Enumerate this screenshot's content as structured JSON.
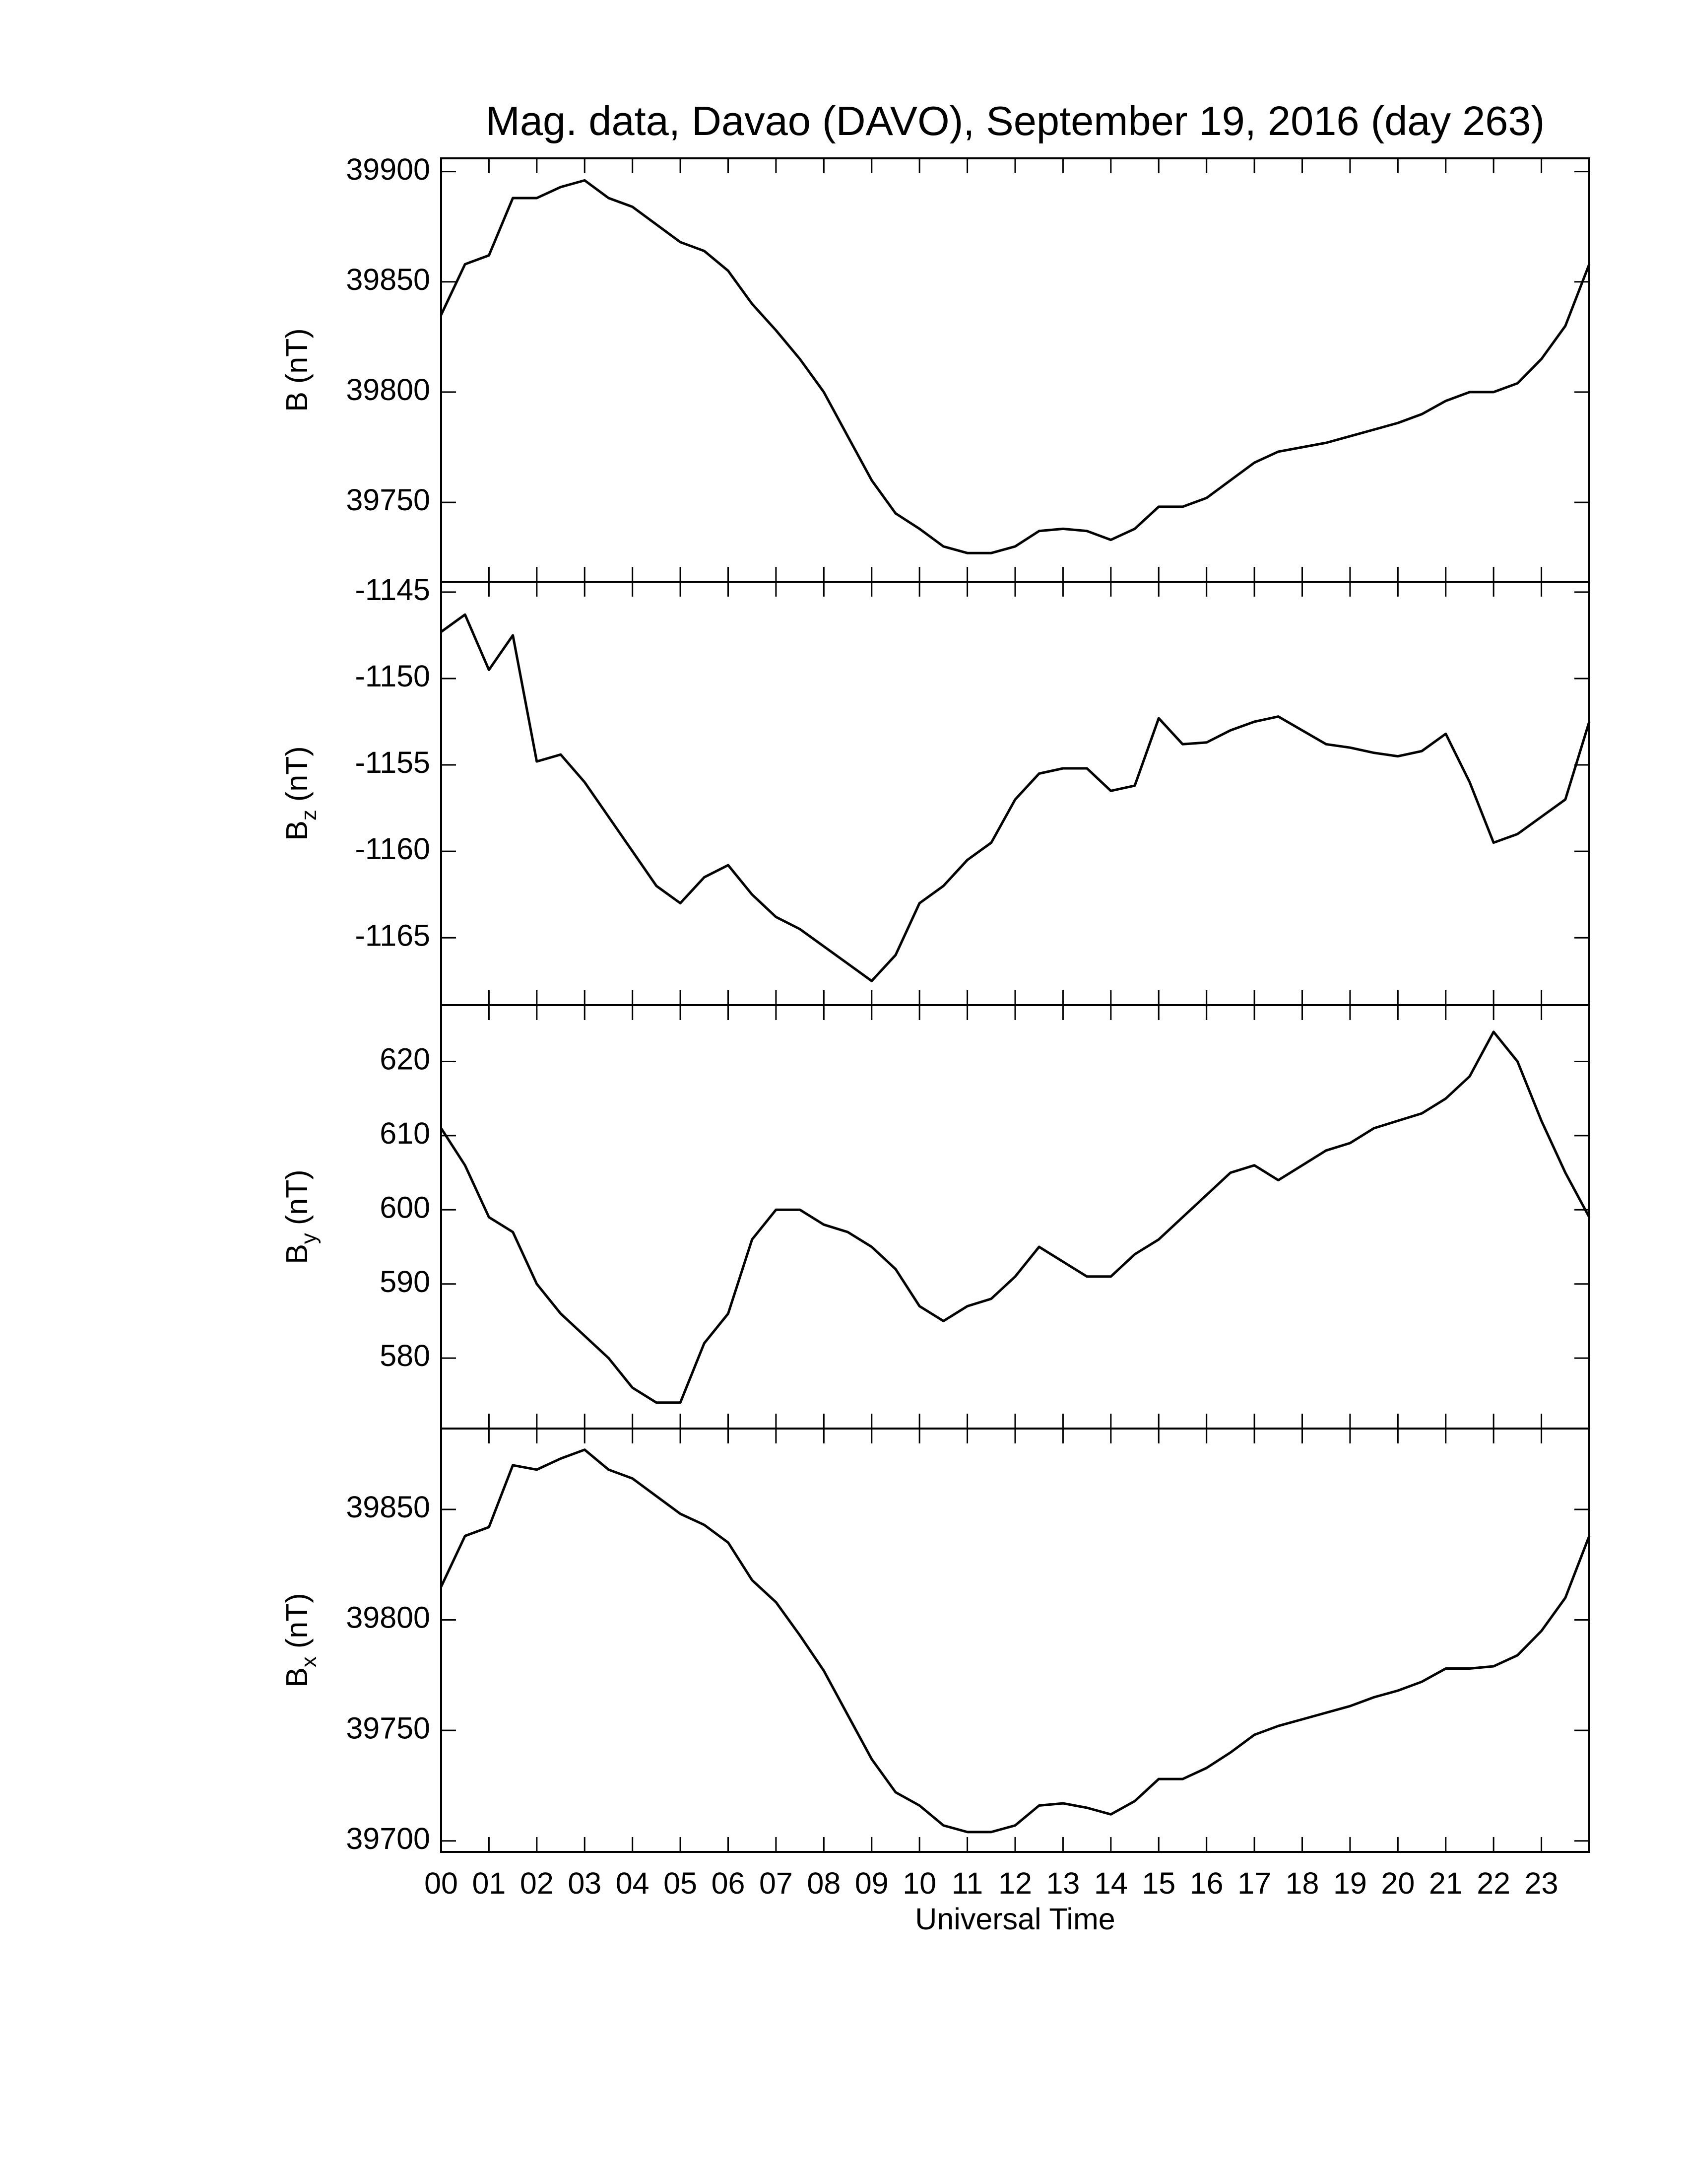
{
  "chart_data": [
    {
      "type": "line",
      "title": "Mag. data, Davao (DAVO), September 19, 2016 (day 263)",
      "ylabel": "B",
      "ylabel_unit": "(nT)",
      "color": "#000000",
      "x": [
        0,
        0.5,
        1,
        1.5,
        2,
        2.5,
        3,
        3.5,
        4,
        4.5,
        5,
        5.5,
        6,
        6.5,
        7,
        7.5,
        8,
        8.5,
        9,
        9.5,
        10,
        10.5,
        11,
        11.5,
        12,
        12.5,
        13,
        13.5,
        14,
        14.5,
        15,
        15.5,
        16,
        16.5,
        17,
        17.5,
        18,
        18.5,
        19,
        19.5,
        20,
        20.5,
        21,
        21.5,
        22,
        22.5,
        23,
        23.5,
        24
      ],
      "values": [
        39835,
        39858,
        39862,
        39888,
        39888,
        39893,
        39896,
        39888,
        39884,
        39876,
        39868,
        39864,
        39855,
        39840,
        39828,
        39815,
        39800,
        39780,
        39760,
        39745,
        39738,
        39730,
        39727,
        39727,
        39730,
        39737,
        39738,
        39737,
        39733,
        39738,
        39748,
        39748,
        39752,
        39760,
        39768,
        39773,
        39775,
        39777,
        39780,
        39783,
        39786,
        39790,
        39796,
        39800,
        39800,
        39804,
        39815,
        39830,
        39858
      ],
      "xlim": [
        0,
        24
      ],
      "xticks": [
        0,
        1,
        2,
        3,
        4,
        5,
        6,
        7,
        8,
        9,
        10,
        11,
        12,
        13,
        14,
        15,
        16,
        17,
        18,
        19,
        20,
        21,
        22,
        23,
        24
      ],
      "ylim": [
        39714,
        39906
      ],
      "yticks": [
        39750,
        39800,
        39850,
        39900
      ]
    },
    {
      "type": "line",
      "ylabel": "B",
      "ylabel_subscript": "z",
      "ylabel_unit": "(nT)",
      "color": "#000000",
      "x": [
        0,
        0.5,
        1,
        1.5,
        2,
        2.5,
        3,
        3.5,
        4,
        4.5,
        5,
        5.5,
        6,
        6.5,
        7,
        7.5,
        8,
        8.5,
        9,
        9.5,
        10,
        10.5,
        11,
        11.5,
        12,
        12.5,
        13,
        13.5,
        14,
        14.5,
        15,
        15.5,
        16,
        16.5,
        17,
        17.5,
        18,
        18.5,
        19,
        19.5,
        20,
        20.5,
        21,
        21.5,
        22,
        22.5,
        23,
        23.5,
        24
      ],
      "values": [
        -1147.3,
        -1146.3,
        -1149.5,
        -1147.5,
        -1154.8,
        -1154.4,
        -1156,
        -1158,
        -1160,
        -1162,
        -1163,
        -1161.5,
        -1160.8,
        -1162.5,
        -1163.8,
        -1164.5,
        -1165.5,
        -1166.5,
        -1167.5,
        -1166,
        -1163,
        -1162,
        -1160.5,
        -1159.5,
        -1157,
        -1155.5,
        -1155.2,
        -1155.2,
        -1156.5,
        -1156.2,
        -1152.3,
        -1153.8,
        -1153.7,
        -1153,
        -1152.5,
        -1152.2,
        -1153,
        -1153.8,
        -1154,
        -1154.3,
        -1154.5,
        -1154.2,
        -1153.2,
        -1156,
        -1159.5,
        -1159,
        -1158,
        -1157,
        -1152.5
      ],
      "xlim": [
        0,
        24
      ],
      "xticks": [
        0,
        1,
        2,
        3,
        4,
        5,
        6,
        7,
        8,
        9,
        10,
        11,
        12,
        13,
        14,
        15,
        16,
        17,
        18,
        19,
        20,
        21,
        22,
        23,
        24
      ],
      "ylim": [
        -1168.9,
        -1144.4
      ],
      "yticks": [
        -1165,
        -1160,
        -1155,
        -1150,
        -1145
      ]
    },
    {
      "type": "line",
      "ylabel": "B",
      "ylabel_subscript": "y",
      "ylabel_unit": "(nT)",
      "color": "#000000",
      "x": [
        0,
        0.5,
        1,
        1.5,
        2,
        2.5,
        3,
        3.5,
        4,
        4.5,
        5,
        5.5,
        6,
        6.5,
        7,
        7.5,
        8,
        8.5,
        9,
        9.5,
        10,
        10.5,
        11,
        11.5,
        12,
        12.5,
        13,
        13.5,
        14,
        14.5,
        15,
        15.5,
        16,
        16.5,
        17,
        17.5,
        18,
        18.5,
        19,
        19.5,
        20,
        20.5,
        21,
        21.5,
        22,
        22.5,
        23,
        23.5,
        24
      ],
      "values": [
        611,
        606,
        599,
        597,
        590,
        586,
        583,
        580,
        576,
        574,
        574,
        582,
        586,
        596,
        600,
        600,
        598,
        597,
        595,
        592,
        587,
        585,
        587,
        588,
        591,
        595,
        593,
        591,
        591,
        594,
        596,
        599,
        602,
        605,
        606,
        604,
        606,
        608,
        609,
        611,
        612,
        613,
        615,
        618,
        624,
        620,
        612,
        605,
        599
      ],
      "xlim": [
        0,
        24
      ],
      "xticks": [
        0,
        1,
        2,
        3,
        4,
        5,
        6,
        7,
        8,
        9,
        10,
        11,
        12,
        13,
        14,
        15,
        16,
        17,
        18,
        19,
        20,
        21,
        22,
        23,
        24
      ],
      "ylim": [
        570.5,
        627.6
      ],
      "yticks": [
        580,
        590,
        600,
        610,
        620
      ]
    },
    {
      "type": "line",
      "ylabel": "B",
      "ylabel_subscript": "x",
      "ylabel_unit": "(nT)",
      "xlabel": "Universal Time",
      "color": "#000000",
      "x": [
        0,
        0.5,
        1,
        1.5,
        2,
        2.5,
        3,
        3.5,
        4,
        4.5,
        5,
        5.5,
        6,
        6.5,
        7,
        7.5,
        8,
        8.5,
        9,
        9.5,
        10,
        10.5,
        11,
        11.5,
        12,
        12.5,
        13,
        13.5,
        14,
        14.5,
        15,
        15.5,
        16,
        16.5,
        17,
        17.5,
        18,
        18.5,
        19,
        19.5,
        20,
        20.5,
        21,
        21.5,
        22,
        22.5,
        23,
        23.5,
        24
      ],
      "values": [
        39815,
        39838,
        39842,
        39870,
        39868,
        39873,
        39877,
        39868,
        39864,
        39856,
        39848,
        39843,
        39835,
        39818,
        39808,
        39793,
        39777,
        39757,
        39737,
        39722,
        39716,
        39707,
        39704,
        39704,
        39707,
        39716,
        39717,
        39715,
        39712,
        39718,
        39728,
        39728,
        39733,
        39740,
        39748,
        39752,
        39755,
        39758,
        39761,
        39765,
        39768,
        39772,
        39778,
        39778,
        39779,
        39784,
        39795,
        39810,
        39838
      ],
      "xlim": [
        0,
        24
      ],
      "xticks": [
        {
          "value": 0,
          "label": "00"
        },
        {
          "value": 1,
          "label": "01"
        },
        {
          "value": 2,
          "label": "02"
        },
        {
          "value": 3,
          "label": "03"
        },
        {
          "value": 4,
          "label": "04"
        },
        {
          "value": 5,
          "label": "05"
        },
        {
          "value": 6,
          "label": "06"
        },
        {
          "value": 7,
          "label": "07"
        },
        {
          "value": 8,
          "label": "08"
        },
        {
          "value": 9,
          "label": "09"
        },
        {
          "value": 10,
          "label": "10"
        },
        {
          "value": 11,
          "label": "11"
        },
        {
          "value": 12,
          "label": "12"
        },
        {
          "value": 13,
          "label": "13"
        },
        {
          "value": 14,
          "label": "14"
        },
        {
          "value": 15,
          "label": "15"
        },
        {
          "value": 16,
          "label": "16"
        },
        {
          "value": 17,
          "label": "17"
        },
        {
          "value": 18,
          "label": "18"
        },
        {
          "value": 19,
          "label": "19"
        },
        {
          "value": 20,
          "label": "20"
        },
        {
          "value": 21,
          "label": "21"
        },
        {
          "value": 22,
          "label": "22"
        },
        {
          "value": 23,
          "label": "23"
        }
      ],
      "ylim": [
        39695,
        39886.6
      ],
      "yticks": [
        39700,
        39750,
        39800,
        39850
      ]
    }
  ]
}
